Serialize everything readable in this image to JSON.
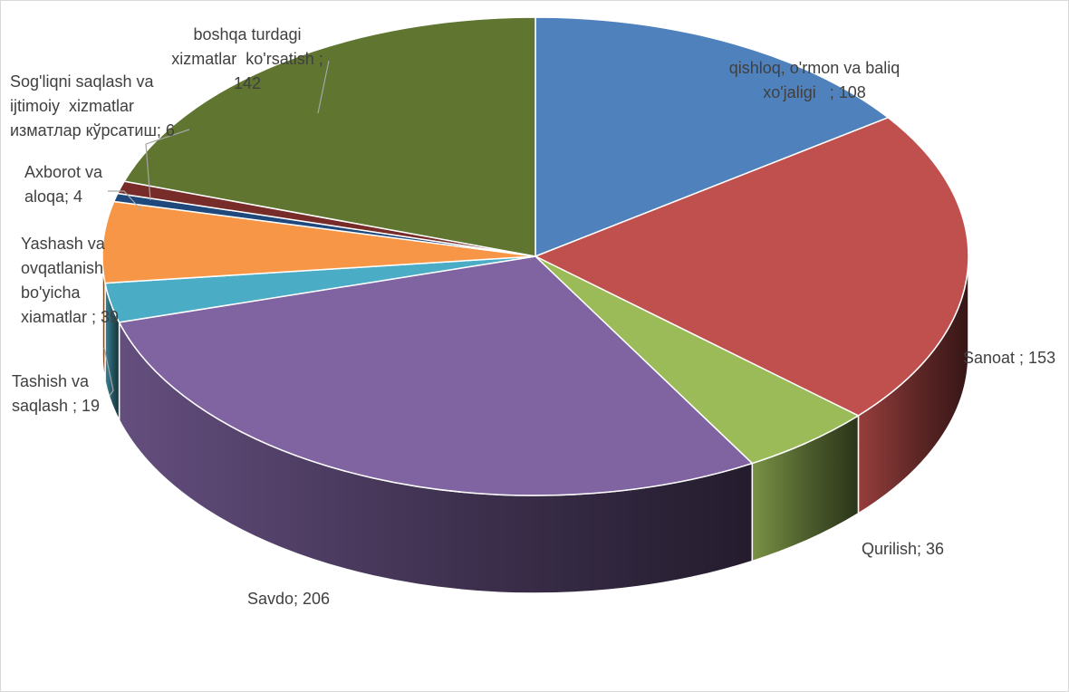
{
  "chart_data": {
    "type": "pie",
    "variant": "3d",
    "title": "",
    "legend": "none",
    "start_angle_deg": 0,
    "direction": "clockwise",
    "slices": [
      {
        "label_lines": [
          "qishloq, o'rmon va baliq",
          "xo'jaligi   ; 108"
        ],
        "value": 108,
        "color": "#4F81BD"
      },
      {
        "label_lines": [
          "Sanoat ; 153"
        ],
        "value": 153,
        "color": "#C0504D"
      },
      {
        "label_lines": [
          "Qurilish; 36"
        ],
        "value": 36,
        "color": "#9BBB59"
      },
      {
        "label_lines": [
          "Savdo; 206"
        ],
        "value": 206,
        "color": "#8064A2"
      },
      {
        "label_lines": [
          "Tashish va",
          "saqlash ; 19"
        ],
        "value": 19,
        "color": "#4BACC6"
      },
      {
        "label_lines": [
          "Yashash va",
          "ovqatlanish",
          "bo'yicha",
          "xiamatlar ; 39"
        ],
        "value": 39,
        "color": "#F79646"
      },
      {
        "label_lines": [
          "Axborot va",
          "aloqa; 4"
        ],
        "value": 4,
        "color": "#1F497D"
      },
      {
        "label_lines": [
          "Sog'liqni saqlash va",
          "ijtimoiy  xizmatlar",
          "изматлар кўрсатиш; 6"
        ],
        "value": 6,
        "color": "#772C2A"
      },
      {
        "label_lines": [
          "boshqa turdagi",
          "xizmatlar  ko'rsatish ;",
          "142"
        ],
        "value": 142,
        "color": "#5F7530"
      }
    ]
  }
}
